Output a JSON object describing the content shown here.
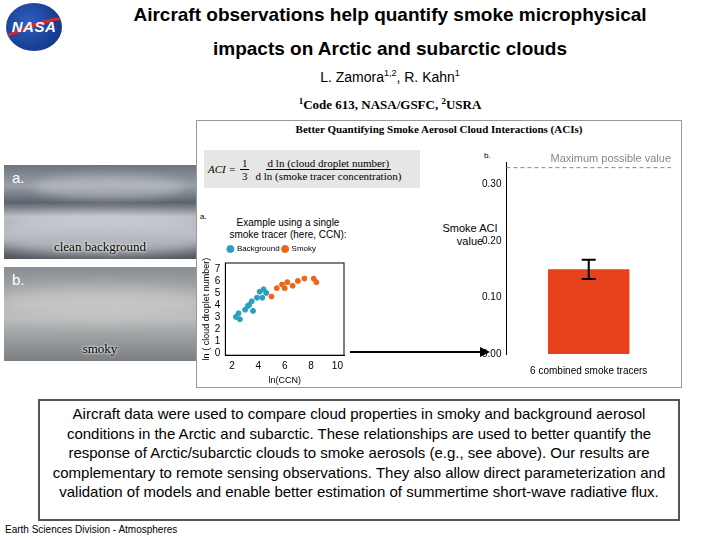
{
  "header": {
    "logo": "NASA",
    "title_lines": [
      "Aircraft observations help quantify smoke microphysical",
      "impacts on Arctic and subarctic clouds"
    ],
    "authors": [
      {
        "name": "L. Zamora",
        "affiliations": "1,2"
      },
      {
        "name": "R. Kahn",
        "affiliations": "1"
      }
    ],
    "affiliations": [
      {
        "mark": "1",
        "text": "Code 613, NASA/GSFC,"
      },
      {
        "mark": "2",
        "text": "USRA"
      }
    ]
  },
  "photos": [
    {
      "panel": "a.",
      "caption": "clean background"
    },
    {
      "panel": "b.",
      "caption": "smoky"
    }
  ],
  "figure": {
    "title": "Better Quantifying Smoke Aerosol Cloud Interactions (ACIs)",
    "equation": {
      "lhs": "ACI =",
      "coefficient_num": "1",
      "coefficient_den": "3",
      "numerator": "d ln (cloud droplet number)",
      "denominator": "d ln (smoke tracer concentration)"
    },
    "scatter_panel": "a.",
    "scatter_note": "Example using a single smoke tracer (here, CCN):",
    "bar_panel": "b.",
    "bar_note": "Smoke ACI value"
  },
  "chart_data": [
    {
      "type": "scatter",
      "x_label": "ln(CCN)",
      "y_label": "ln ( cloud droplet number)",
      "xlim": [
        1.5,
        10.5
      ],
      "xticks": [
        2,
        4,
        6,
        8,
        10
      ],
      "ylim": [
        -0.2,
        7.5
      ],
      "yticks": [
        0,
        1,
        2,
        3,
        4,
        5,
        6,
        7
      ],
      "grid": false,
      "legend": "top",
      "series": [
        {
          "name": "Background",
          "color": "#2a9fc0",
          "marker": "circle",
          "x": [
            2.3,
            2.5,
            2.6,
            3.0,
            3.2,
            3.3,
            3.5,
            3.6,
            3.9,
            4.1,
            4.3,
            4.4,
            4.6
          ],
          "values": [
            3.0,
            3.3,
            2.8,
            3.6,
            3.9,
            4.0,
            4.3,
            3.5,
            4.6,
            5.1,
            4.6,
            5.3,
            5.0
          ]
        },
        {
          "name": "Smoky",
          "color": "#e8681c",
          "marker": "circle",
          "x": [
            5.0,
            5.4,
            5.8,
            6.0,
            6.2,
            6.6,
            7.0,
            7.5,
            8.2,
            8.4
          ],
          "values": [
            4.7,
            5.4,
            5.7,
            5.4,
            5.9,
            5.6,
            6.0,
            6.2,
            6.2,
            5.9
          ]
        }
      ]
    },
    {
      "type": "bar",
      "categories": [
        "6 combined smoke tracers"
      ],
      "values": [
        0.15
      ],
      "error": [
        0.017
      ],
      "color": "#e8421c",
      "ylim": [
        0,
        0.34
      ],
      "yticks": [
        {
          "value": 0,
          "label": "0.00"
        },
        {
          "value": 0.1,
          "label": "0.10"
        },
        {
          "value": 0.2,
          "label": "0.20"
        },
        {
          "value": 0.3,
          "label": "0.30"
        }
      ],
      "grid": false,
      "max_value": 0.33,
      "max_label": "Maximum possible value"
    }
  ],
  "summary": "Aircraft data were used to compare cloud properties in smoky and background aerosol conditions in the Arctic and subarctic. These relationships are used to better quantify the response of Arctic/subarctic clouds to smoke aerosols (e.g., see above). Our results are complementary to remote sensing observations. They also allow direct parameterization and validation of models and enable better estimation of summertime short-wave radiative flux.",
  "footer": "Earth Sciences Division - Atmospheres"
}
